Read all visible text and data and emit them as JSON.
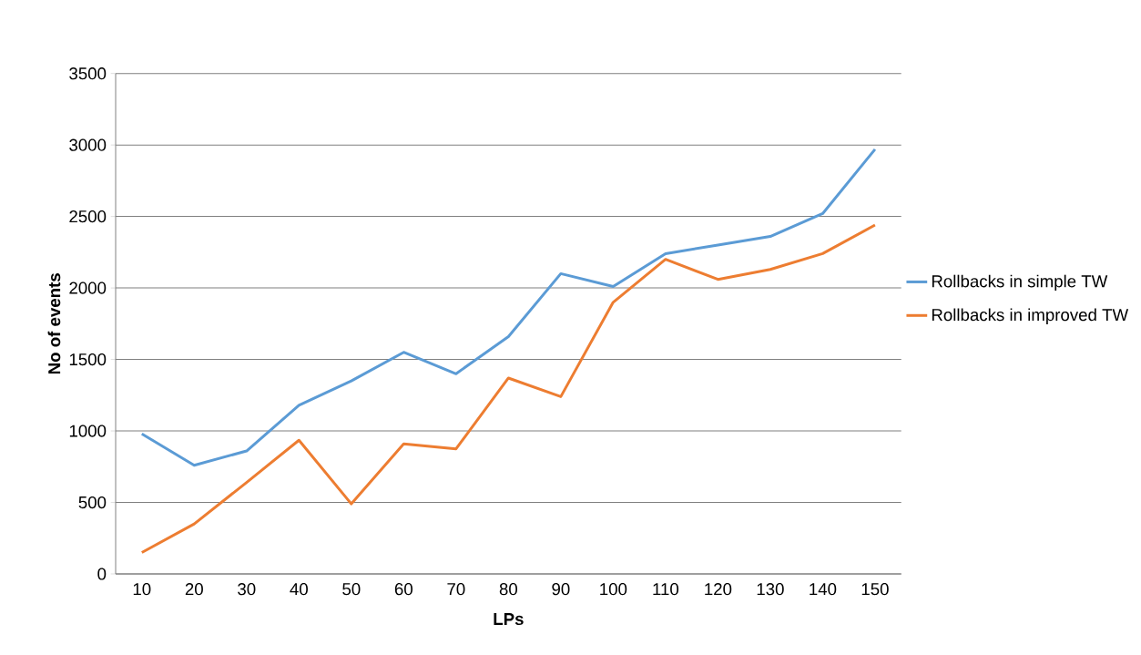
{
  "chart_data": {
    "type": "line",
    "xlabel": "LPs",
    "ylabel": "No of events",
    "categories": [
      "10",
      "20",
      "30",
      "40",
      "50",
      "60",
      "70",
      "80",
      "90",
      "100",
      "110",
      "120",
      "130",
      "140",
      "150"
    ],
    "series": [
      {
        "name": "Rollbacks in simple TW",
        "color": "#5b9bd5",
        "values": [
          980,
          760,
          860,
          1180,
          1350,
          1550,
          1400,
          1660,
          2100,
          2010,
          2240,
          2300,
          2360,
          2520,
          2970
        ]
      },
      {
        "name": "Rollbacks in improved TW",
        "color": "#ed7d31",
        "values": [
          150,
          350,
          640,
          935,
          490,
          910,
          875,
          1370,
          1240,
          1900,
          2200,
          2060,
          2130,
          2240,
          2440
        ]
      }
    ],
    "ylim": [
      0,
      3500
    ],
    "yticks": [
      0,
      500,
      1000,
      1500,
      2000,
      2500,
      3000,
      3500
    ],
    "grid": "y",
    "legend": "right",
    "marker": "none",
    "line_style": "solid"
  }
}
